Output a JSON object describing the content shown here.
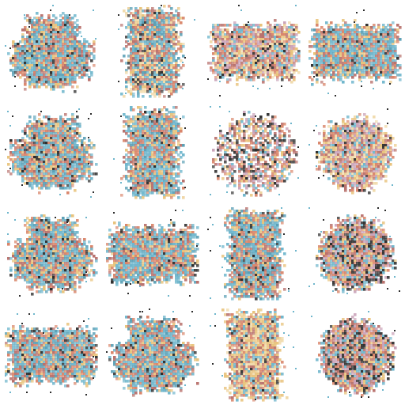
{
  "grid": {
    "rows": 4,
    "cols": 4,
    "background": "#ffffff",
    "palette": [
      "#6fb6cc",
      "#d9856a",
      "#e8c27a",
      "#b8706b",
      "#f0d9a8",
      "#2d2d2d",
      "#5a9fb5",
      "#c9a2b8"
    ],
    "tiles": [
      {
        "shape": "cross",
        "dominant": "blue-orange",
        "seed": 11
      },
      {
        "shape": "tall",
        "dominant": "orange-blue",
        "seed": 23
      },
      {
        "shape": "wide",
        "dominant": "orange",
        "seed": 37
      },
      {
        "shape": "wide",
        "dominant": "blue-orange",
        "seed": 41
      },
      {
        "shape": "cross",
        "dominant": "blue",
        "seed": 53
      },
      {
        "shape": "tall",
        "dominant": "blue-orange",
        "seed": 67
      },
      {
        "shape": "scatter",
        "dominant": "dark-orange",
        "seed": 71
      },
      {
        "shape": "round",
        "dominant": "orange",
        "seed": 83
      },
      {
        "shape": "cross",
        "dominant": "blue",
        "seed": 97
      },
      {
        "shape": "wide",
        "dominant": "blue",
        "seed": 101
      },
      {
        "shape": "tall",
        "dominant": "blue-orange",
        "seed": 113
      },
      {
        "shape": "round",
        "dominant": "orange-dark",
        "seed": 127
      },
      {
        "shape": "wide",
        "dominant": "blue-orange",
        "seed": 131
      },
      {
        "shape": "cross",
        "dominant": "blue-orange",
        "seed": 149
      },
      {
        "shape": "tall",
        "dominant": "orange-yellow",
        "seed": 151
      },
      {
        "shape": "round",
        "dominant": "orange-dark",
        "seed": 163
      }
    ]
  }
}
